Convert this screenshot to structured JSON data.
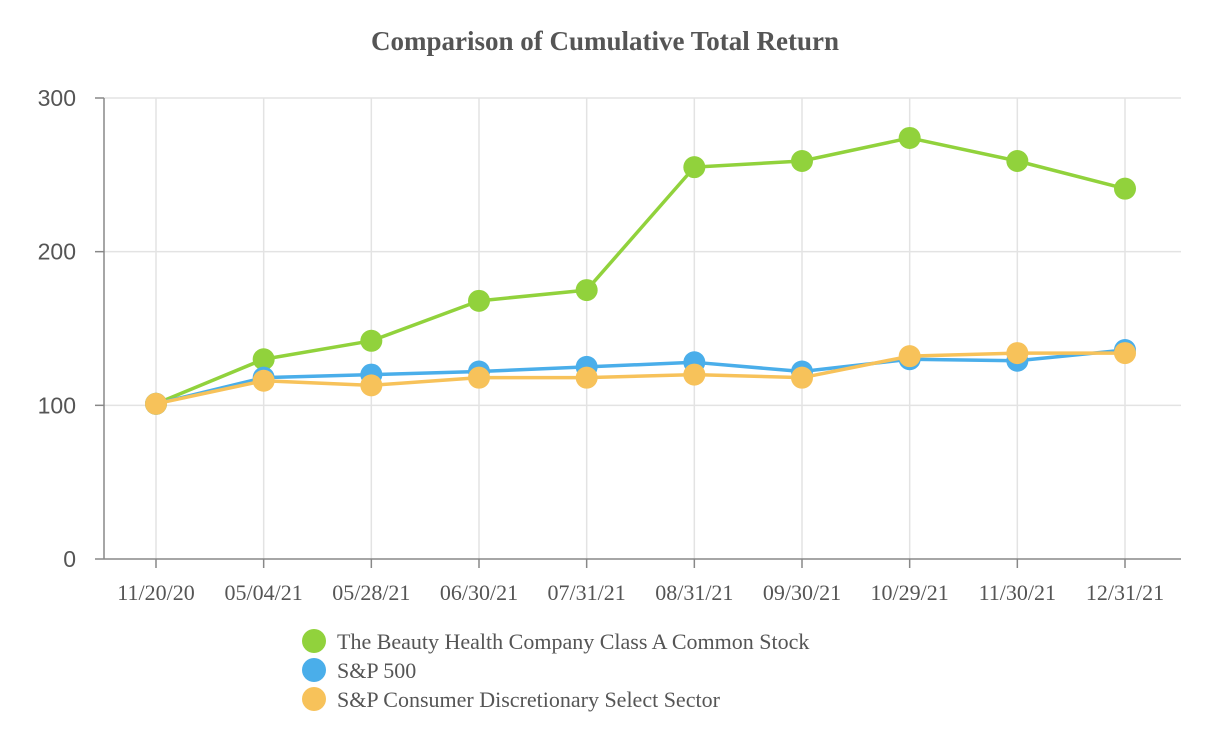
{
  "chart_data": {
    "type": "line",
    "title": "Comparison of Cumulative Total Return",
    "xlabel": "",
    "ylabel": "",
    "ylim": [
      0,
      300
    ],
    "yticks": [
      "0",
      "100",
      "200",
      "300"
    ],
    "categories": [
      "11/20/20",
      "05/04/21",
      "05/28/21",
      "06/30/21",
      "07/31/21",
      "08/31/21",
      "09/30/21",
      "10/29/21",
      "11/30/21",
      "12/31/21"
    ],
    "grid": true,
    "legend_position": "bottom",
    "series": [
      {
        "name": "The Beauty Health Company Class A Common Stock",
        "color": "#91d23c",
        "values": [
          101,
          130,
          142,
          168,
          175,
          255,
          259,
          274,
          259,
          241
        ]
      },
      {
        "name": "S&P 500",
        "color": "#4aaeea",
        "values": [
          101,
          118,
          120,
          122,
          125,
          128,
          122,
          130,
          129,
          136
        ]
      },
      {
        "name": "S&P Consumer Discretionary Select Sector",
        "color": "#f7c25a",
        "values": [
          101,
          116,
          113,
          118,
          118,
          120,
          118,
          132,
          134,
          134
        ]
      }
    ]
  }
}
